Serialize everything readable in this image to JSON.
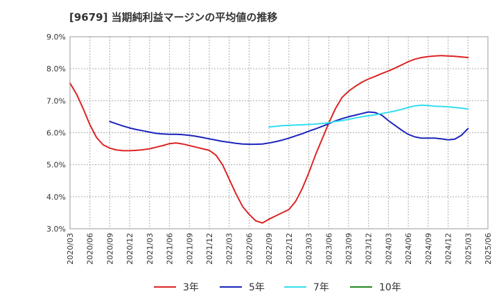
{
  "title": "[9679]  当期純利益マージンの平均値の推移",
  "chart_data": {
    "type": "line",
    "title": "[9679]  当期純利益マージンの平均値の推移",
    "y_tick_labels": [
      "3.0%",
      "4.0%",
      "5.0%",
      "6.0%",
      "7.0%",
      "8.0%",
      "9.0%"
    ],
    "ylim": [
      3.0,
      9.0
    ],
    "x_tick_labels": [
      "2020/03",
      "2020/06",
      "2020/09",
      "2020/12",
      "2021/03",
      "2021/06",
      "2021/09",
      "2021/12",
      "2022/03",
      "2022/06",
      "2022/09",
      "2022/12",
      "2023/03",
      "2023/06",
      "2023/09",
      "2023/12",
      "2024/03",
      "2024/06",
      "2024/09",
      "2024/12",
      "2025/03",
      "2025/06"
    ],
    "grid": true,
    "legend_position": "bottom",
    "series": [
      {
        "name": "3年",
        "color": "#dd2222",
        "x": [
          "2020/03",
          "2020/04",
          "2020/05",
          "2020/06",
          "2020/07",
          "2020/08",
          "2020/09",
          "2020/10",
          "2020/11",
          "2020/12",
          "2021/01",
          "2021/02",
          "2021/03",
          "2021/04",
          "2021/05",
          "2021/06",
          "2021/07",
          "2021/08",
          "2021/09",
          "2021/10",
          "2021/11",
          "2021/12",
          "2022/01",
          "2022/02",
          "2022/03",
          "2022/04",
          "2022/05",
          "2022/06",
          "2022/07",
          "2022/08",
          "2022/09",
          "2022/10",
          "2022/11",
          "2022/12",
          "2023/01",
          "2023/02",
          "2023/03",
          "2023/04",
          "2023/05",
          "2023/06",
          "2023/07",
          "2023/08",
          "2023/09",
          "2023/10",
          "2023/11",
          "2023/12",
          "2024/01",
          "2024/02",
          "2024/03",
          "2024/04",
          "2024/05",
          "2024/06",
          "2024/07",
          "2024/08",
          "2024/09",
          "2024/10",
          "2024/11",
          "2024/12",
          "2025/01",
          "2025/02",
          "2025/03"
        ],
        "values": [
          7.55,
          7.2,
          6.75,
          6.25,
          5.85,
          5.62,
          5.52,
          5.46,
          5.44,
          5.44,
          5.45,
          5.47,
          5.5,
          5.55,
          5.6,
          5.66,
          5.68,
          5.65,
          5.6,
          5.55,
          5.5,
          5.45,
          5.3,
          5.0,
          4.55,
          4.1,
          3.7,
          3.45,
          3.25,
          3.18,
          3.3,
          3.4,
          3.5,
          3.6,
          3.85,
          4.25,
          4.75,
          5.3,
          5.8,
          6.3,
          6.75,
          7.1,
          7.3,
          7.45,
          7.58,
          7.68,
          7.76,
          7.85,
          7.93,
          8.02,
          8.12,
          8.22,
          8.3,
          8.35,
          8.38,
          8.4,
          8.41,
          8.4,
          8.39,
          8.37,
          8.35
        ]
      },
      {
        "name": "5年",
        "color": "#1a22bb",
        "x": [
          "2020/09",
          "2020/10",
          "2020/11",
          "2020/12",
          "2021/01",
          "2021/02",
          "2021/03",
          "2021/04",
          "2021/05",
          "2021/06",
          "2021/07",
          "2021/08",
          "2021/09",
          "2021/10",
          "2021/11",
          "2021/12",
          "2022/01",
          "2022/02",
          "2022/03",
          "2022/04",
          "2022/05",
          "2022/06",
          "2022/07",
          "2022/08",
          "2022/09",
          "2022/10",
          "2022/11",
          "2022/12",
          "2023/01",
          "2023/02",
          "2023/03",
          "2023/04",
          "2023/05",
          "2023/06",
          "2023/07",
          "2023/08",
          "2023/09",
          "2023/10",
          "2023/11",
          "2023/12",
          "2024/01",
          "2024/02",
          "2024/03",
          "2024/04",
          "2024/05",
          "2024/06",
          "2024/07",
          "2024/08",
          "2024/09",
          "2024/10",
          "2024/11",
          "2024/12",
          "2025/01",
          "2025/02",
          "2025/03"
        ],
        "values": [
          6.35,
          6.28,
          6.21,
          6.15,
          6.1,
          6.06,
          6.02,
          5.98,
          5.96,
          5.95,
          5.95,
          5.94,
          5.92,
          5.89,
          5.85,
          5.81,
          5.77,
          5.73,
          5.7,
          5.67,
          5.65,
          5.64,
          5.64,
          5.65,
          5.68,
          5.72,
          5.77,
          5.83,
          5.9,
          5.97,
          6.05,
          6.12,
          6.2,
          6.28,
          6.37,
          6.44,
          6.5,
          6.55,
          6.6,
          6.65,
          6.63,
          6.55,
          6.38,
          6.23,
          6.08,
          5.95,
          5.87,
          5.83,
          5.83,
          5.83,
          5.81,
          5.78,
          5.8,
          5.92,
          6.13
        ]
      },
      {
        "name": "7年",
        "color": "#33ddf0",
        "x": [
          "2022/09",
          "2022/10",
          "2022/11",
          "2022/12",
          "2023/01",
          "2023/02",
          "2023/03",
          "2023/04",
          "2023/05",
          "2023/06",
          "2023/07",
          "2023/08",
          "2023/09",
          "2023/10",
          "2023/11",
          "2023/12",
          "2024/01",
          "2024/02",
          "2024/03",
          "2024/04",
          "2024/05",
          "2024/06",
          "2024/07",
          "2024/08",
          "2024/09",
          "2024/10",
          "2024/11",
          "2024/12",
          "2025/01",
          "2025/02",
          "2025/03"
        ],
        "values": [
          6.18,
          6.2,
          6.22,
          6.23,
          6.24,
          6.25,
          6.26,
          6.27,
          6.29,
          6.31,
          6.35,
          6.38,
          6.42,
          6.46,
          6.5,
          6.53,
          6.56,
          6.6,
          6.64,
          6.68,
          6.73,
          6.79,
          6.84,
          6.86,
          6.85,
          6.83,
          6.82,
          6.81,
          6.79,
          6.77,
          6.74
        ]
      },
      {
        "name": "10年",
        "color": "#228822",
        "x": [],
        "values": []
      }
    ]
  }
}
